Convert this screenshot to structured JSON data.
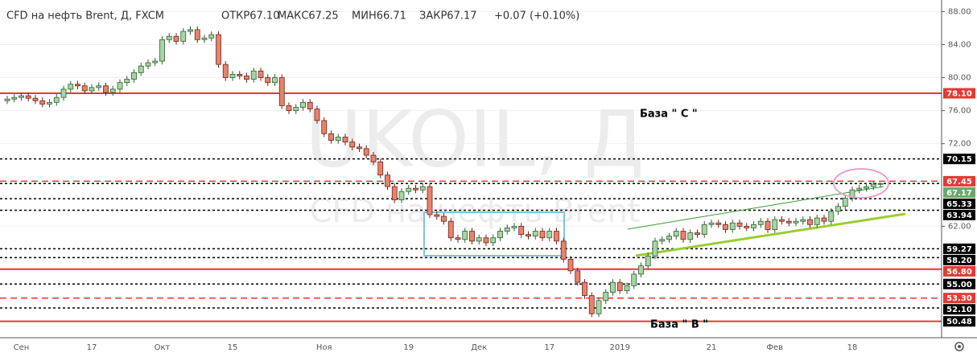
{
  "chart_data": {
    "type": "candlestick",
    "title": "CFD на нефть Brent, Д, FXCM",
    "stats": [
      "ОТКР67.10",
      "МАКС67.25",
      "МИН66.71",
      "ЗАКР67.17",
      "+0.07 (+0.10%)"
    ],
    "watermark": "UKOIL, Д",
    "watermark_subtitle": "CFD на нефть Brent",
    "annotations": [
      "База \" С \"",
      "База \" В \""
    ],
    "ylim": [
      48.5,
      89.4
    ],
    "yticks": [
      {
        "value": 88,
        "label": "88.00"
      },
      {
        "value": 84,
        "label": "84.00"
      },
      {
        "value": 80,
        "label": "80.00"
      },
      {
        "value": 76,
        "label": "76.00"
      },
      {
        "value": 72,
        "label": "72.00"
      },
      {
        "value": 62,
        "label": "62.00"
      }
    ],
    "grid": true,
    "up_color": "#a8d5a0",
    "down_color": "#e8836b",
    "categories": [
      null,
      null,
      "Сен",
      null,
      null,
      null,
      null,
      null,
      null,
      null,
      null,
      null,
      "17",
      null,
      null,
      null,
      null,
      null,
      null,
      null,
      null,
      null,
      "Окт",
      null,
      null,
      null,
      null,
      null,
      null,
      null,
      null,
      null,
      "15",
      null,
      null,
      null,
      null,
      null,
      null,
      null,
      null,
      null,
      null,
      null,
      null,
      "Ноя",
      null,
      null,
      null,
      null,
      null,
      null,
      null,
      null,
      null,
      null,
      null,
      "19",
      null,
      null,
      null,
      null,
      null,
      null,
      null,
      null,
      null,
      "Дек",
      null,
      null,
      null,
      null,
      null,
      null,
      null,
      null,
      null,
      "17",
      null,
      null,
      null,
      null,
      null,
      null,
      null,
      null,
      null,
      "2019",
      null,
      null,
      null,
      null,
      null,
      null,
      null,
      null,
      null,
      null,
      null,
      null,
      "21",
      null,
      null,
      null,
      null,
      null,
      null,
      null,
      null,
      "Фев",
      null,
      null,
      null,
      null,
      null,
      null,
      null,
      null,
      null,
      null,
      "18",
      null,
      null,
      null,
      null
    ],
    "open": [
      77.2,
      77.4,
      77.6,
      77.8,
      77.5,
      77.2,
      76.8,
      77.0,
      77.6,
      78.6,
      79.2,
      79.0,
      78.4,
      78.8,
      79.0,
      78.2,
      78.6,
      79.4,
      79.8,
      80.6,
      81.4,
      81.8,
      82.0,
      84.6,
      85.0,
      84.4,
      85.6,
      85.8,
      84.6,
      84.8,
      85.2,
      81.6,
      80.0,
      80.4,
      80.2,
      79.8,
      80.8,
      80.0,
      79.4,
      80.0,
      76.6,
      76.0,
      76.4,
      77.0,
      76.2,
      74.8,
      73.2,
      72.4,
      72.8,
      72.2,
      71.6,
      71.4,
      70.6,
      69.8,
      68.2,
      66.8,
      65.2,
      66.2,
      66.6,
      66.4,
      66.8,
      63.4,
      63.2,
      62.6,
      60.6,
      60.4,
      61.4,
      60.2,
      60.6,
      60.0,
      60.6,
      61.4,
      61.8,
      62.0,
      61.0,
      60.8,
      61.4,
      60.6,
      61.4,
      60.2,
      58.0,
      56.6,
      55.2,
      53.6,
      51.4,
      53.0,
      54.0,
      55.2,
      54.2,
      54.8,
      56.2,
      57.2,
      58.4,
      60.2,
      60.4,
      60.8,
      61.4,
      60.4,
      61.2,
      61.0,
      62.2,
      62.4,
      62.2,
      61.6,
      62.4,
      62.0,
      61.8,
      62.2,
      62.6,
      61.6,
      62.8,
      62.6,
      62.4,
      62.6,
      62.8,
      62.2,
      63.0,
      62.6,
      63.8,
      64.4,
      65.4,
      66.4,
      66.6,
      66.8,
      67.1
    ],
    "high": [
      77.8,
      78.0,
      78.2,
      78.2,
      77.9,
      77.6,
      77.4,
      78.0,
      79.0,
      79.6,
      79.6,
      79.4,
      79.2,
      79.4,
      79.4,
      79.0,
      79.8,
      80.2,
      81.0,
      81.8,
      82.2,
      82.4,
      85.0,
      85.4,
      85.4,
      86.0,
      86.2,
      86.2,
      85.2,
      85.6,
      85.6,
      82.0,
      80.8,
      80.8,
      80.6,
      81.2,
      81.2,
      80.4,
      80.4,
      80.4,
      77.0,
      76.8,
      77.4,
      77.4,
      76.6,
      75.2,
      73.6,
      73.2,
      73.2,
      72.6,
      72.0,
      71.8,
      71.0,
      70.2,
      68.6,
      67.2,
      66.6,
      67.0,
      67.0,
      67.2,
      67.2,
      63.8,
      63.6,
      63.0,
      61.0,
      61.8,
      61.8,
      61.0,
      61.0,
      61.0,
      61.8,
      62.2,
      62.4,
      62.4,
      61.4,
      61.8,
      61.8,
      61.8,
      61.8,
      60.6,
      58.4,
      57.0,
      55.6,
      54.0,
      53.4,
      54.4,
      55.6,
      55.6,
      55.2,
      56.6,
      57.6,
      58.8,
      60.6,
      60.8,
      61.2,
      61.8,
      61.8,
      61.6,
      61.6,
      62.6,
      62.8,
      62.8,
      62.6,
      62.8,
      62.8,
      62.4,
      62.6,
      63.0,
      63.0,
      63.2,
      63.2,
      63.0,
      63.0,
      63.2,
      63.2,
      63.4,
      63.4,
      64.2,
      64.8,
      65.8,
      66.8,
      67.0,
      67.2,
      67.5,
      67.25
    ],
    "low": [
      76.8,
      77.0,
      77.2,
      77.1,
      76.8,
      76.4,
      76.4,
      76.6,
      77.2,
      78.2,
      78.6,
      78.0,
      78.0,
      78.4,
      77.8,
      77.8,
      78.2,
      79.0,
      79.4,
      80.2,
      81.0,
      81.4,
      81.6,
      84.2,
      84.0,
      84.0,
      85.2,
      84.2,
      84.2,
      84.4,
      81.2,
      79.6,
      79.6,
      79.8,
      79.4,
      79.4,
      79.6,
      79.0,
      79.0,
      76.2,
      75.6,
      75.6,
      76.0,
      75.8,
      74.4,
      72.8,
      72.0,
      72.0,
      71.8,
      71.2,
      71.0,
      70.2,
      69.4,
      67.8,
      66.4,
      64.8,
      64.8,
      65.8,
      66.0,
      66.0,
      63.0,
      62.8,
      62.2,
      60.2,
      60.0,
      60.0,
      59.8,
      59.8,
      59.6,
      59.6,
      60.2,
      61.0,
      61.4,
      60.6,
      60.4,
      60.4,
      60.2,
      60.2,
      59.8,
      57.6,
      56.2,
      54.8,
      53.2,
      51.0,
      51.0,
      52.6,
      53.6,
      53.8,
      53.8,
      54.4,
      55.8,
      56.8,
      58.0,
      59.8,
      60.0,
      60.4,
      60.0,
      60.0,
      60.6,
      60.6,
      61.8,
      61.8,
      61.2,
      61.2,
      61.6,
      61.4,
      61.4,
      61.8,
      61.2,
      61.2,
      62.2,
      62.0,
      62.0,
      62.2,
      61.8,
      61.8,
      62.2,
      62.2,
      63.4,
      64.0,
      65.0,
      66.0,
      66.2,
      66.4,
      66.71
    ],
    "close": [
      77.4,
      77.6,
      77.8,
      77.5,
      77.2,
      76.8,
      77.0,
      77.6,
      78.6,
      79.2,
      79.0,
      78.4,
      78.8,
      79.0,
      78.2,
      78.6,
      79.4,
      79.8,
      80.6,
      81.4,
      81.8,
      82.0,
      84.6,
      85.0,
      84.4,
      85.6,
      85.8,
      84.6,
      84.8,
      85.2,
      81.6,
      80.0,
      80.4,
      80.2,
      79.8,
      80.8,
      80.0,
      79.4,
      80.0,
      76.6,
      76.0,
      76.4,
      77.0,
      76.2,
      74.8,
      73.2,
      72.4,
      72.8,
      72.2,
      71.6,
      71.4,
      70.6,
      69.8,
      68.2,
      66.8,
      65.2,
      66.2,
      66.6,
      66.4,
      66.8,
      63.4,
      63.2,
      62.6,
      60.6,
      60.4,
      61.4,
      60.2,
      60.6,
      60.0,
      60.6,
      61.4,
      61.8,
      62.0,
      61.0,
      60.8,
      61.4,
      60.6,
      61.4,
      60.2,
      58.0,
      56.6,
      55.2,
      53.6,
      51.4,
      53.0,
      54.0,
      55.2,
      54.2,
      54.8,
      56.2,
      57.2,
      58.4,
      60.2,
      60.4,
      60.8,
      61.4,
      60.4,
      61.2,
      61.0,
      62.2,
      62.4,
      62.2,
      61.6,
      62.4,
      62.0,
      61.8,
      62.2,
      62.6,
      61.6,
      62.8,
      62.6,
      62.4,
      62.6,
      62.8,
      62.2,
      63.0,
      62.6,
      63.8,
      64.4,
      65.4,
      66.4,
      66.6,
      66.8,
      67.1,
      67.17
    ],
    "levels": [
      {
        "value": 78.1,
        "label": "78.10",
        "color": "#e53935",
        "style": "solid",
        "label_bg": "#e53935"
      },
      {
        "value": 70.15,
        "label": "70.15",
        "color": "#000000",
        "style": "dotted",
        "label_bg": "#000000"
      },
      {
        "value": 67.45,
        "label": "67.45",
        "color": "#e53935",
        "style": "dashed",
        "label_bg": "#e53935"
      },
      {
        "value": 67.17,
        "label": "67.17",
        "color": "#000000",
        "style": "dotted",
        "label_bg": "#6aa86a"
      },
      {
        "value": 65.33,
        "label": "65.33",
        "color": "#000000",
        "style": "dotted",
        "label_bg": "#000000"
      },
      {
        "value": 63.94,
        "label": "63.94",
        "color": "#000000",
        "style": "dotted",
        "label_bg": "#000000"
      },
      {
        "value": 59.27,
        "label": "59.27",
        "color": "#000000",
        "style": "dotted",
        "label_bg": "#000000"
      },
      {
        "value": 58.2,
        "label": "58.20",
        "color": "#000000",
        "style": "dotted",
        "label_bg": "#000000"
      },
      {
        "value": 56.8,
        "label": "56.80",
        "color": "#e53935",
        "style": "solid",
        "label_bg": "#e53935"
      },
      {
        "value": 55,
        "label": "55.00",
        "color": "#000000",
        "style": "dotted",
        "label_bg": "#000000"
      },
      {
        "value": 53.3,
        "label": "53.30",
        "color": "#e53935",
        "style": "dashed",
        "label_bg": "#e53935"
      },
      {
        "value": 52.1,
        "label": "52.10",
        "color": "#000000",
        "style": "dotted",
        "label_bg": "#000000"
      },
      {
        "value": 50.48,
        "label": "50.48",
        "color": "#e53935",
        "style": "solid",
        "label_bg": "#000000"
      }
    ]
  }
}
